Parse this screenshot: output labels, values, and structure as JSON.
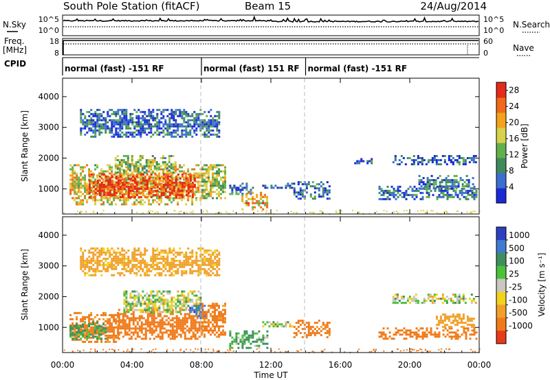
{
  "header": {
    "station": "South Pole Station (fitACF)",
    "beam": "Beam 15",
    "date": "24/Aug/2014"
  },
  "left_labels": {
    "nsky": "N.Sky",
    "freq_line1": "Freq.",
    "freq_line2": "[MHz]",
    "cpid": "CPID"
  },
  "right_labels": {
    "nsearch": "N.Search",
    "nave": "Nave"
  },
  "chart_data": [
    {
      "type": "line",
      "panel": "noise",
      "series": [
        {
          "name": "N.Sky",
          "style": "solid",
          "approx_level": [
            10,
            5
          ]
        },
        {
          "name": "N.Search",
          "style": "dotted",
          "approx_level": [
            10,
            0
          ]
        }
      ],
      "yticks_left": [
        "10^5",
        "10^0"
      ],
      "yticks_right": [
        "10^5",
        "10^0"
      ]
    },
    {
      "type": "line",
      "panel": "frequency",
      "series": [
        {
          "name": "Freq.",
          "style": "solid",
          "value": 18
        },
        {
          "name": "Nave",
          "style": "dotted",
          "value": 55
        }
      ],
      "yticks_left": [
        "18",
        "8"
      ],
      "yticks_right": [
        "60",
        "0"
      ]
    },
    {
      "type": "table",
      "panel": "cpid",
      "segments": [
        {
          "start": 0,
          "end": 8,
          "label": "normal (fast) -151 RF"
        },
        {
          "start": 8,
          "end": 14,
          "label": "normal (fast) 151 RF"
        },
        {
          "start": 14,
          "end": 24,
          "label": "normal (fast) -151 RF"
        }
      ]
    },
    {
      "type": "heatmap",
      "panel": "power",
      "ylabel": "Slant Range [km]",
      "ylim": [
        180,
        4600
      ],
      "yticks": [
        "1000",
        "2000",
        "3000",
        "4000"
      ],
      "colorbar_label": "Power [dB]",
      "colorbar_ticks": [
        "4",
        "8",
        "12",
        "16",
        "20",
        "24",
        "28"
      ],
      "vmin": 0,
      "vmax": 30,
      "colors": [
        "#1a2ad6",
        "#3a6fd0",
        "#3f8a5c",
        "#62b04a",
        "#d6d24a",
        "#f2a21d",
        "#f06a1a",
        "#e42a18"
      ],
      "regions": [
        {
          "t0": 0.4,
          "t1": 8.0,
          "r0": 500,
          "r1": 1800,
          "value": 18
        },
        {
          "t0": 1.5,
          "t1": 7.6,
          "r0": 700,
          "r1": 1500,
          "value": 27
        },
        {
          "t0": 3.0,
          "t1": 6.5,
          "r0": 1500,
          "r1": 2100,
          "value": 14
        },
        {
          "t0": 8.0,
          "t1": 9.4,
          "r0": 700,
          "r1": 1800,
          "value": 15
        },
        {
          "t0": 9.6,
          "t1": 11.0,
          "r0": 800,
          "r1": 1200,
          "value": 6
        },
        {
          "t0": 10.3,
          "t1": 11.8,
          "r0": 350,
          "r1": 900,
          "value": 20
        },
        {
          "t0": 11.5,
          "t1": 13.3,
          "r0": 1000,
          "r1": 1200,
          "value": 5
        },
        {
          "t0": 13.3,
          "t1": 15.4,
          "r0": 650,
          "r1": 1250,
          "value": 6
        },
        {
          "t0": 18.2,
          "t1": 23.8,
          "r0": 650,
          "r1": 1100,
          "value": 6
        },
        {
          "t0": 20.5,
          "t1": 23.7,
          "r0": 1000,
          "r1": 1450,
          "value": 8
        },
        {
          "t0": 19.0,
          "t1": 23.8,
          "r0": 1800,
          "r1": 2100,
          "value": 5
        },
        {
          "t0": 16.8,
          "t1": 17.8,
          "r0": 1850,
          "r1": 2000,
          "value": 5
        },
        {
          "t0": 1.0,
          "t1": 9.0,
          "r0": 2700,
          "r1": 3600,
          "value": 6
        }
      ]
    },
    {
      "type": "heatmap",
      "panel": "velocity",
      "ylabel": "Slant Range [km]",
      "ylim": [
        180,
        4600
      ],
      "yticks": [
        "1000",
        "2000",
        "3000",
        "4000"
      ],
      "colorbar_label": "Velocity [m s⁻¹]",
      "colorbar_ticks": [
        "1000",
        "500",
        "100",
        "25",
        "-25",
        "-100",
        "-500",
        "-1000"
      ],
      "colors": [
        "#2e3fc0",
        "#3f7ad0",
        "#3f8f5c",
        "#4cc13a",
        "#c8c8c0",
        "#f3d21c",
        "#f0a02a",
        "#f07a1a",
        "#e83a1a"
      ],
      "regions": [
        {
          "t0": 0.4,
          "t1": 3.2,
          "r0": 500,
          "r1": 1500,
          "value": -600
        },
        {
          "t0": 0.4,
          "t1": 2.5,
          "r0": 650,
          "r1": 1200,
          "value": 150
        },
        {
          "t0": 3.2,
          "t1": 8.0,
          "r0": 600,
          "r1": 1600,
          "value": -700
        },
        {
          "t0": 3.5,
          "t1": 8.0,
          "r0": 1500,
          "r1": 2200,
          "value": 0
        },
        {
          "t0": 7.3,
          "t1": 8.2,
          "r0": 1300,
          "r1": 1800,
          "value": 900
        },
        {
          "t0": 8.0,
          "t1": 9.4,
          "r0": 700,
          "r1": 1800,
          "value": -600
        },
        {
          "t0": 9.6,
          "t1": 11.8,
          "r0": 350,
          "r1": 900,
          "value": 120
        },
        {
          "t0": 11.5,
          "t1": 13.3,
          "r0": 1000,
          "r1": 1200,
          "value": 0
        },
        {
          "t0": 13.3,
          "t1": 15.4,
          "r0": 650,
          "r1": 1250,
          "value": -600
        },
        {
          "t0": 18.2,
          "t1": 23.8,
          "r0": 650,
          "r1": 1000,
          "value": -700
        },
        {
          "t0": 21.5,
          "t1": 23.7,
          "r0": 1000,
          "r1": 1450,
          "value": -300
        },
        {
          "t0": 19.0,
          "t1": 23.8,
          "r0": 1800,
          "r1": 2100,
          "value": 0
        },
        {
          "t0": 1.0,
          "t1": 9.0,
          "r0": 2700,
          "r1": 3600,
          "value": -200
        }
      ]
    }
  ],
  "x_axis": {
    "ticks": [
      "00:00",
      "04:00",
      "08:00",
      "12:00",
      "16:00",
      "20:00",
      "00:00"
    ],
    "label": "Time UT",
    "xlim": [
      0,
      24
    ]
  }
}
